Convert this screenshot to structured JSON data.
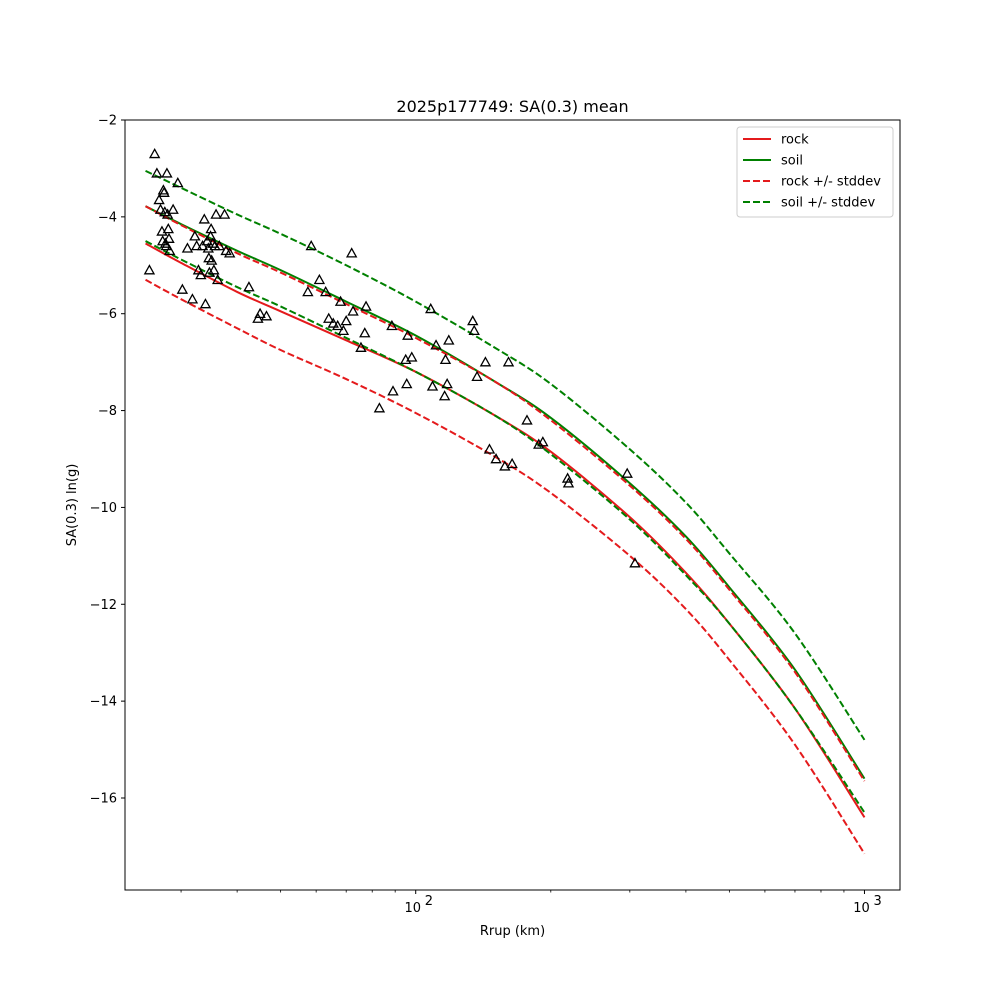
{
  "chart_data": {
    "type": "line",
    "title": "2025p177749: SA(0.3) mean",
    "xlabel": "Rrup (km)",
    "ylabel": "SA(0.3) ln(g)",
    "x_scale": "log",
    "xlim": [
      22.5,
      1200
    ],
    "ylim": [
      -17.9,
      -2.0
    ],
    "y_ticks": [
      -2,
      -4,
      -6,
      -8,
      -10,
      -12,
      -14,
      -16
    ],
    "y_tick_labels": [
      "−2",
      "−4",
      "−6",
      "−8",
      "−10",
      "−12",
      "−14",
      "−16"
    ],
    "x_ticks": [
      100,
      1000
    ],
    "x_tick_labels": [
      "10",
      "10"
    ],
    "x_tick_exponents": [
      "2",
      "3"
    ],
    "legend_position": "top-right",
    "grid": false,
    "series": [
      {
        "name": "rock",
        "color": "#e41a1c",
        "dash": "solid",
        "x": [
          25,
          30,
          40,
          50,
          70,
          100,
          150,
          200,
          300,
          400,
          500,
          700,
          1000
        ],
        "y": [
          -4.55,
          -4.95,
          -5.55,
          -5.95,
          -6.55,
          -7.2,
          -8.1,
          -8.85,
          -10.2,
          -11.35,
          -12.4,
          -14.15,
          -16.4
        ]
      },
      {
        "name": "soil",
        "color": "#008000",
        "dash": "solid",
        "x": [
          25,
          30,
          40,
          50,
          70,
          100,
          150,
          200,
          300,
          400,
          500,
          700,
          1000
        ],
        "y": [
          -3.78,
          -4.15,
          -4.7,
          -5.1,
          -5.75,
          -6.45,
          -7.4,
          -8.15,
          -9.5,
          -10.6,
          -11.65,
          -13.35,
          -15.6
        ]
      },
      {
        "name": "rock +/- stddev",
        "color": "#e41a1c",
        "dash": "dashed",
        "x": [
          25,
          30,
          40,
          50,
          70,
          100,
          150,
          200,
          300,
          400,
          500,
          700,
          1000
        ],
        "y": [
          -3.78,
          -4.17,
          -4.75,
          -5.15,
          -5.8,
          -6.5,
          -7.4,
          -8.2,
          -9.55,
          -10.65,
          -11.7,
          -13.4,
          -15.65
        ]
      },
      {
        "name": "rock +/- stddev (lower)",
        "color": "#e41a1c",
        "dash": "dashed",
        "legend": false,
        "x": [
          25,
          30,
          40,
          50,
          70,
          100,
          150,
          200,
          300,
          400,
          500,
          700,
          1000
        ],
        "y": [
          -5.3,
          -5.7,
          -6.3,
          -6.75,
          -7.35,
          -8.05,
          -8.95,
          -9.7,
          -11.0,
          -12.1,
          -13.15,
          -14.9,
          -17.15
        ]
      },
      {
        "name": "soil +/- stddev",
        "color": "#008000",
        "dash": "dashed",
        "x": [
          25,
          30,
          40,
          50,
          70,
          100,
          150,
          200,
          300,
          400,
          500,
          700,
          1000
        ],
        "y": [
          -3.05,
          -3.4,
          -3.95,
          -4.35,
          -5.0,
          -5.75,
          -6.7,
          -7.45,
          -8.8,
          -9.9,
          -10.95,
          -12.6,
          -14.8
        ]
      },
      {
        "name": "soil +/- stddev (lower)",
        "color": "#008000",
        "dash": "dashed",
        "legend": false,
        "x": [
          25,
          30,
          40,
          50,
          70,
          100,
          150,
          200,
          300,
          400,
          500,
          700,
          1000
        ],
        "y": [
          -4.5,
          -4.88,
          -5.45,
          -5.85,
          -6.5,
          -7.2,
          -8.1,
          -8.9,
          -10.25,
          -11.4,
          -12.4,
          -14.15,
          -16.3
        ]
      }
    ],
    "observations": {
      "marker": "triangle",
      "color": "#000000",
      "points": [
        [
          25.5,
          -5.1
        ],
        [
          26.2,
          -2.7
        ],
        [
          26.5,
          -3.1
        ],
        [
          26.8,
          -3.65
        ],
        [
          27.0,
          -3.85
        ],
        [
          27.2,
          -4.3
        ],
        [
          27.3,
          -4.5
        ],
        [
          27.4,
          -3.45
        ],
        [
          27.5,
          -3.5
        ],
        [
          27.6,
          -3.9
        ],
        [
          27.7,
          -4.55
        ],
        [
          27.8,
          -4.6
        ],
        [
          27.9,
          -3.1
        ],
        [
          28.0,
          -3.95
        ],
        [
          28.1,
          -4.25
        ],
        [
          28.2,
          -4.45
        ],
        [
          28.3,
          -4.7
        ],
        [
          28.8,
          -3.85
        ],
        [
          29.5,
          -3.3
        ],
        [
          30.2,
          -5.5
        ],
        [
          31.0,
          -4.65
        ],
        [
          31.8,
          -5.7
        ],
        [
          32.2,
          -4.4
        ],
        [
          32.5,
          -4.6
        ],
        [
          32.8,
          -5.1
        ],
        [
          33.2,
          -5.2
        ],
        [
          33.5,
          -4.6
        ],
        [
          33.8,
          -4.05
        ],
        [
          34.0,
          -5.8
        ],
        [
          34.3,
          -4.5
        ],
        [
          34.5,
          -4.65
        ],
        [
          34.6,
          -4.85
        ],
        [
          34.7,
          -5.15
        ],
        [
          34.9,
          -4.4
        ],
        [
          35.0,
          -4.25
        ],
        [
          35.1,
          -4.9
        ],
        [
          35.3,
          -4.55
        ],
        [
          35.5,
          -5.1
        ],
        [
          35.7,
          -4.6
        ],
        [
          35.9,
          -3.95
        ],
        [
          36.2,
          -5.3
        ],
        [
          36.5,
          -4.6
        ],
        [
          37.5,
          -3.95
        ],
        [
          37.8,
          -4.7
        ],
        [
          38.5,
          -4.75
        ],
        [
          42.5,
          -5.45
        ],
        [
          44.5,
          -6.1
        ],
        [
          45.0,
          -6.0
        ],
        [
          46.5,
          -6.05
        ],
        [
          57.5,
          -5.55
        ],
        [
          58.5,
          -4.6
        ],
        [
          61.0,
          -5.3
        ],
        [
          63.0,
          -5.55
        ],
        [
          64.0,
          -6.1
        ],
        [
          65.5,
          -6.2
        ],
        [
          67.0,
          -6.25
        ],
        [
          68.0,
          -5.75
        ],
        [
          69.0,
          -6.35
        ],
        [
          70.0,
          -6.15
        ],
        [
          72.0,
          -4.75
        ],
        [
          72.5,
          -5.95
        ],
        [
          75.5,
          -6.7
        ],
        [
          77.0,
          -6.4
        ],
        [
          77.5,
          -5.85
        ],
        [
          83.0,
          -7.95
        ],
        [
          88.5,
          -6.25
        ],
        [
          89.0,
          -7.6
        ],
        [
          95.0,
          -6.95
        ],
        [
          95.5,
          -7.45
        ],
        [
          96.0,
          -6.45
        ],
        [
          98.0,
          -6.9
        ],
        [
          108.0,
          -5.9
        ],
        [
          109.0,
          -7.5
        ],
        [
          111.0,
          -6.65
        ],
        [
          116.0,
          -7.7
        ],
        [
          116.5,
          -6.95
        ],
        [
          117.5,
          -7.45
        ],
        [
          118.5,
          -6.55
        ],
        [
          134.0,
          -6.15
        ],
        [
          135.0,
          -6.35
        ],
        [
          137.0,
          -7.3
        ],
        [
          143.0,
          -7.0
        ],
        [
          146.0,
          -8.8
        ],
        [
          151.0,
          -9.0
        ],
        [
          158.0,
          -9.15
        ],
        [
          161.0,
          -7.0
        ],
        [
          164.0,
          -9.1
        ],
        [
          177.0,
          -8.2
        ],
        [
          188.0,
          -8.7
        ],
        [
          192.0,
          -8.65
        ],
        [
          218.0,
          -9.4
        ],
        [
          219.0,
          -9.5
        ],
        [
          296.0,
          -9.3
        ],
        [
          308.0,
          -11.15
        ]
      ]
    }
  }
}
